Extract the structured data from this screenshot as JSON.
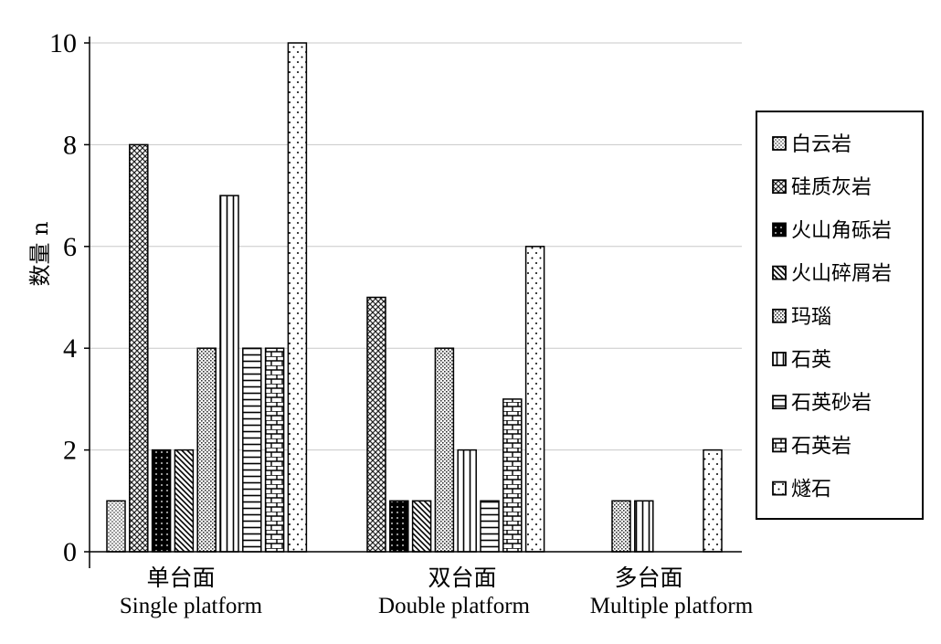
{
  "chart_data": {
    "type": "bar",
    "title": "",
    "ylabel": "数量 n",
    "ylim": [
      0,
      10
    ],
    "yticks": [
      "0",
      "2",
      "4",
      "6",
      "8",
      "10"
    ],
    "grid": true,
    "legend_position": "right",
    "categories": [
      {
        "cn": "单台面",
        "en": "Single platform"
      },
      {
        "cn": "双台面",
        "en": "Double platform"
      },
      {
        "cn": "多台面",
        "en": "Multiple platform"
      }
    ],
    "series": [
      {
        "name": "白云岩",
        "pattern": "dots-fine",
        "values": [
          1,
          0,
          0
        ]
      },
      {
        "name": "硅质灰岩",
        "pattern": "crosshatch",
        "values": [
          8,
          5,
          0
        ]
      },
      {
        "name": "火山角砾岩",
        "pattern": "black-dots",
        "values": [
          2,
          1,
          0
        ]
      },
      {
        "name": "火山碎屑岩",
        "pattern": "diagonal",
        "values": [
          2,
          1,
          0
        ]
      },
      {
        "name": "玛瑙",
        "pattern": "dots-dense",
        "values": [
          4,
          4,
          1
        ]
      },
      {
        "name": "石英",
        "pattern": "vertical",
        "values": [
          7,
          2,
          1
        ]
      },
      {
        "name": "石英砂岩",
        "pattern": "horizontal",
        "values": [
          4,
          1,
          0
        ]
      },
      {
        "name": "石英岩",
        "pattern": "brick",
        "values": [
          4,
          3,
          0
        ]
      },
      {
        "name": "燧石",
        "pattern": "dots-sparse",
        "values": [
          10,
          6,
          2
        ]
      }
    ]
  }
}
